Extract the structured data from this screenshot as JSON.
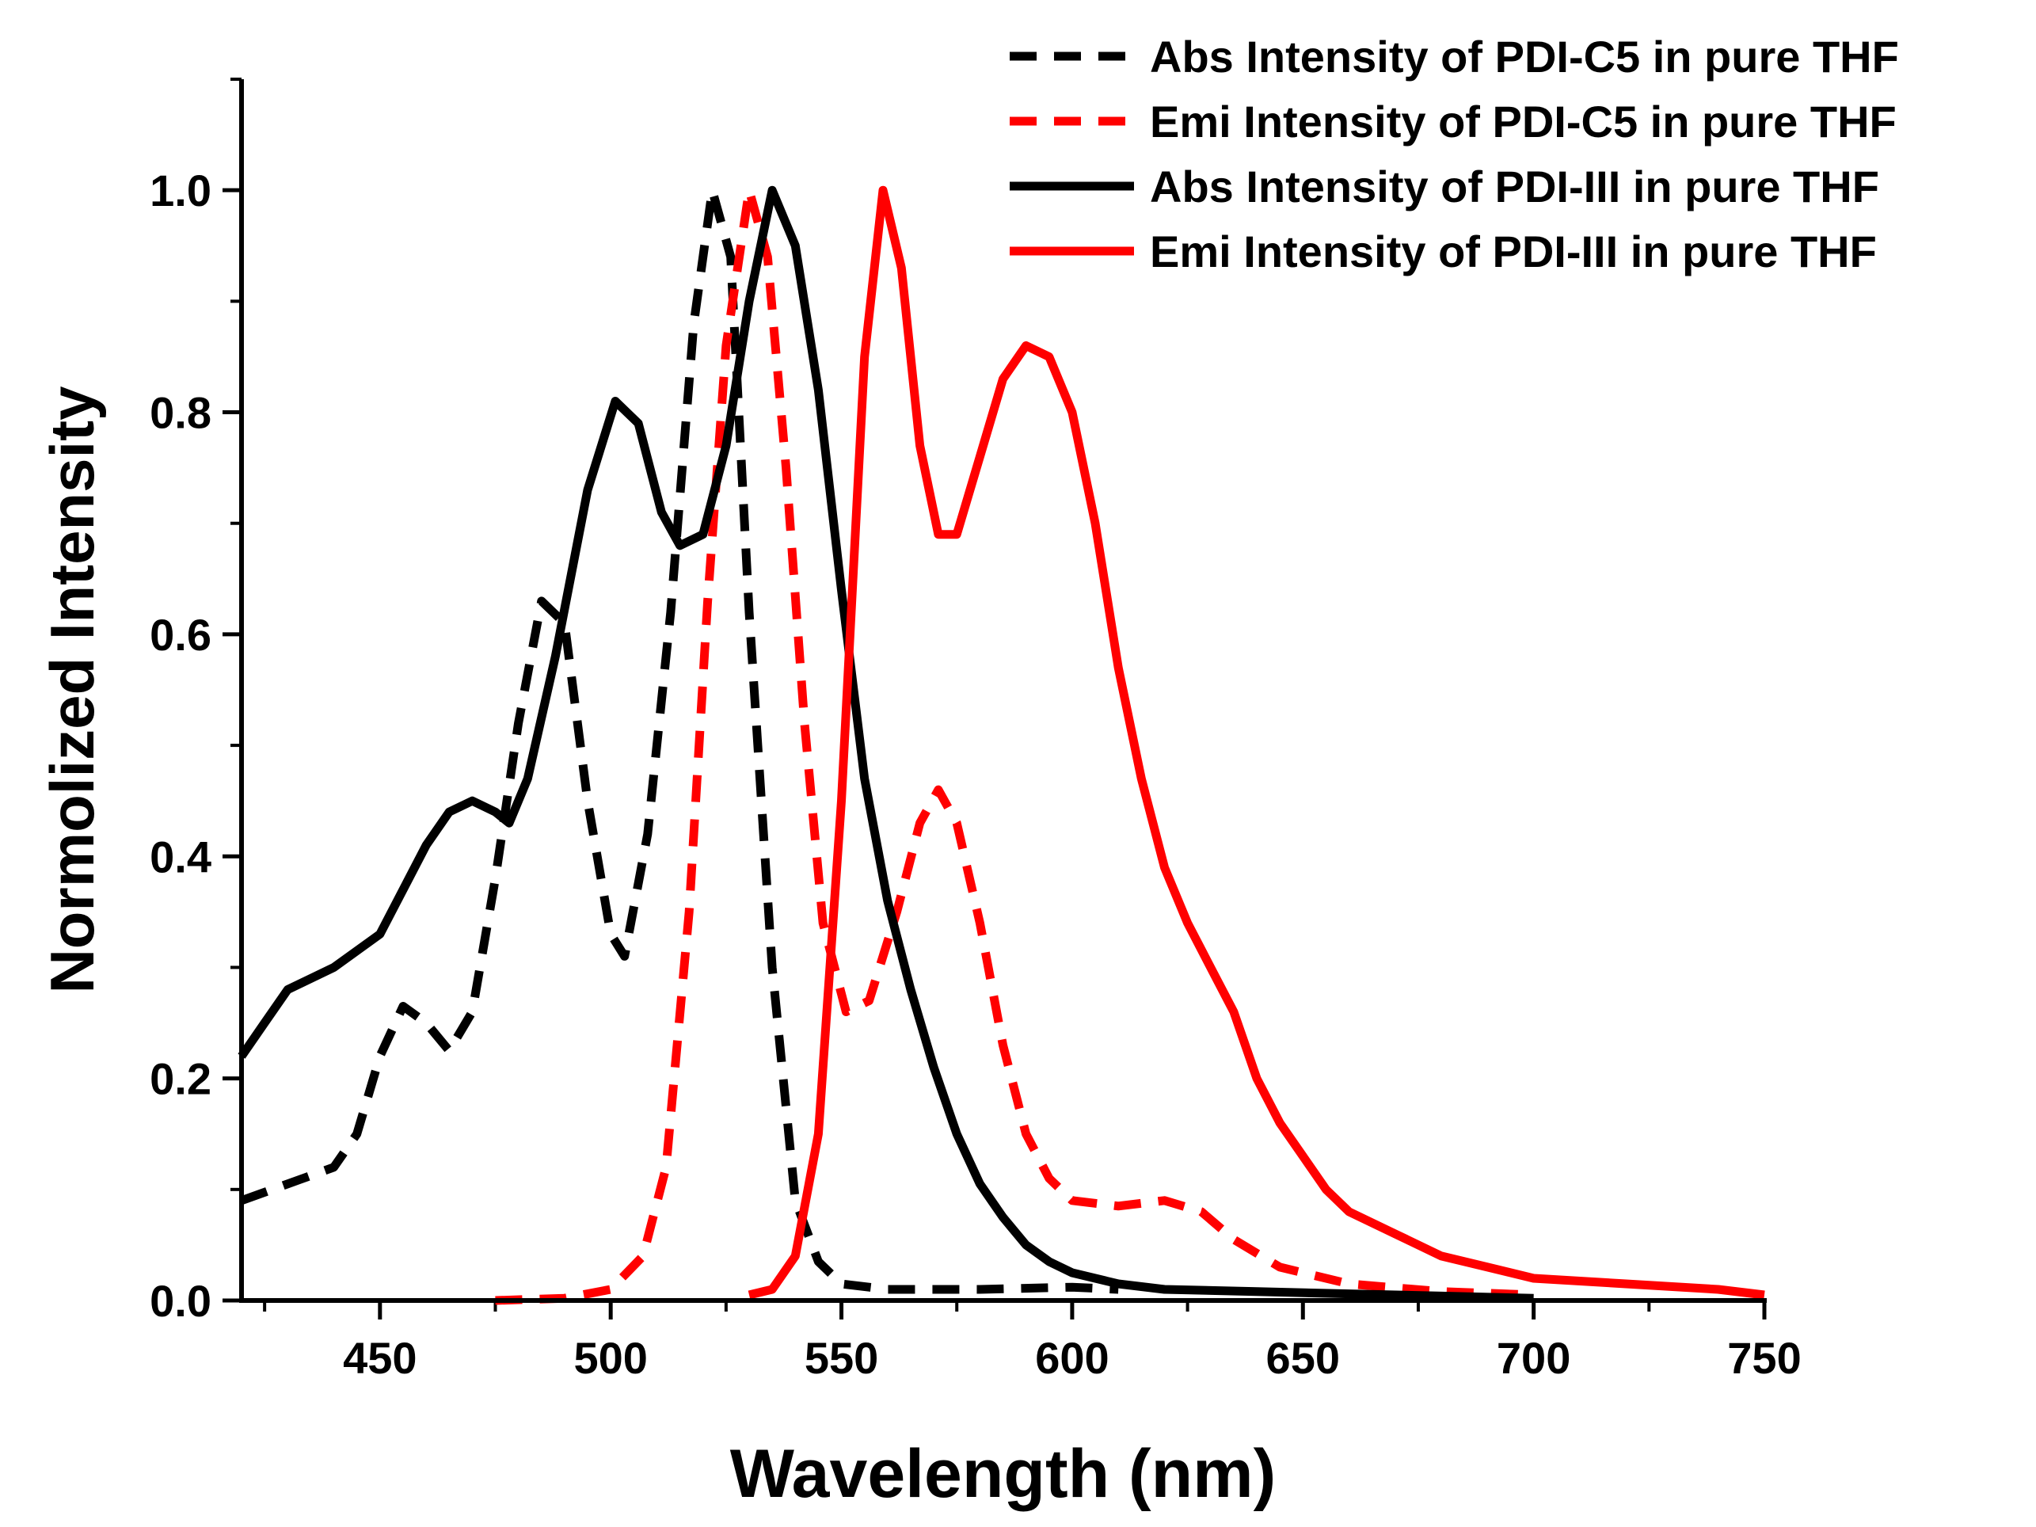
{
  "chart_data": {
    "type": "line",
    "title": "",
    "xlabel": "Wavelength (nm)",
    "ylabel": "Normolized Intensity",
    "xlim": [
      420,
      750
    ],
    "ylim": [
      0,
      1.1
    ],
    "x_ticks": [
      450,
      500,
      550,
      600,
      650,
      700,
      750
    ],
    "x_tick_labels": [
      "450",
      "500",
      "550",
      "600",
      "650",
      "700",
      "750"
    ],
    "y_ticks": [
      0.0,
      0.2,
      0.4,
      0.6,
      0.8,
      1.0
    ],
    "y_tick_labels": [
      "0.0",
      "0.2",
      "0.4",
      "0.6",
      "0.8",
      "1.0"
    ],
    "grid": false,
    "legend_position": "top-right",
    "series": [
      {
        "name": "Abs Intensity of PDI-C5 in pure THF",
        "color": "#000000",
        "style": "dashed",
        "points": [
          [
            420,
            0.09
          ],
          [
            430,
            0.105
          ],
          [
            440,
            0.12
          ],
          [
            445,
            0.15
          ],
          [
            450,
            0.22
          ],
          [
            455,
            0.265
          ],
          [
            460,
            0.25
          ],
          [
            465,
            0.225
          ],
          [
            470,
            0.26
          ],
          [
            475,
            0.38
          ],
          [
            480,
            0.52
          ],
          [
            485,
            0.63
          ],
          [
            490,
            0.61
          ],
          [
            495,
            0.45
          ],
          [
            500,
            0.33
          ],
          [
            503,
            0.31
          ],
          [
            508,
            0.42
          ],
          [
            513,
            0.62
          ],
          [
            518,
            0.88
          ],
          [
            522,
            1.0
          ],
          [
            526,
            0.94
          ],
          [
            530,
            0.62
          ],
          [
            535,
            0.3
          ],
          [
            540,
            0.09
          ],
          [
            545,
            0.035
          ],
          [
            550,
            0.015
          ],
          [
            560,
            0.01
          ],
          [
            580,
            0.01
          ],
          [
            600,
            0.012
          ],
          [
            610,
            0.01
          ]
        ]
      },
      {
        "name": "Emi Intensity of PDI-C5 in pure THF",
        "color": "#ff0000",
        "style": "dashed",
        "points": [
          [
            475,
            0.0
          ],
          [
            490,
            0.002
          ],
          [
            500,
            0.01
          ],
          [
            507,
            0.04
          ],
          [
            512,
            0.12
          ],
          [
            517,
            0.35
          ],
          [
            521,
            0.63
          ],
          [
            525,
            0.86
          ],
          [
            530,
            1.0
          ],
          [
            534,
            0.94
          ],
          [
            538,
            0.75
          ],
          [
            542,
            0.52
          ],
          [
            546,
            0.34
          ],
          [
            551,
            0.26
          ],
          [
            556,
            0.27
          ],
          [
            562,
            0.35
          ],
          [
            567,
            0.43
          ],
          [
            571,
            0.46
          ],
          [
            575,
            0.43
          ],
          [
            580,
            0.34
          ],
          [
            585,
            0.23
          ],
          [
            590,
            0.15
          ],
          [
            595,
            0.11
          ],
          [
            600,
            0.09
          ],
          [
            610,
            0.085
          ],
          [
            620,
            0.09
          ],
          [
            628,
            0.08
          ],
          [
            635,
            0.055
          ],
          [
            645,
            0.03
          ],
          [
            660,
            0.015
          ],
          [
            680,
            0.008
          ],
          [
            700,
            0.005
          ]
        ]
      },
      {
        "name": "Abs Intensity of PDI-III in pure THF",
        "color": "#000000",
        "style": "solid",
        "points": [
          [
            420,
            0.22
          ],
          [
            425,
            0.25
          ],
          [
            430,
            0.28
          ],
          [
            440,
            0.3
          ],
          [
            450,
            0.33
          ],
          [
            455,
            0.37
          ],
          [
            460,
            0.41
          ],
          [
            465,
            0.44
          ],
          [
            470,
            0.45
          ],
          [
            475,
            0.44
          ],
          [
            478,
            0.43
          ],
          [
            482,
            0.47
          ],
          [
            488,
            0.58
          ],
          [
            495,
            0.73
          ],
          [
            501,
            0.81
          ],
          [
            506,
            0.79
          ],
          [
            511,
            0.71
          ],
          [
            515,
            0.68
          ],
          [
            520,
            0.69
          ],
          [
            525,
            0.77
          ],
          [
            530,
            0.9
          ],
          [
            535,
            1.0
          ],
          [
            540,
            0.95
          ],
          [
            545,
            0.82
          ],
          [
            550,
            0.64
          ],
          [
            555,
            0.47
          ],
          [
            560,
            0.36
          ],
          [
            565,
            0.28
          ],
          [
            570,
            0.21
          ],
          [
            575,
            0.15
          ],
          [
            580,
            0.105
          ],
          [
            585,
            0.075
          ],
          [
            590,
            0.05
          ],
          [
            595,
            0.035
          ],
          [
            600,
            0.025
          ],
          [
            610,
            0.015
          ],
          [
            620,
            0.01
          ],
          [
            640,
            0.008
          ],
          [
            660,
            0.006
          ],
          [
            680,
            0.004
          ],
          [
            700,
            0.002
          ]
        ]
      },
      {
        "name": "Emi Intensity of PDI-III in pure THF",
        "color": "#ff0000",
        "style": "solid",
        "points": [
          [
            530,
            0.005
          ],
          [
            535,
            0.01
          ],
          [
            540,
            0.04
          ],
          [
            545,
            0.15
          ],
          [
            550,
            0.45
          ],
          [
            555,
            0.85
          ],
          [
            559,
            1.0
          ],
          [
            563,
            0.93
          ],
          [
            567,
            0.77
          ],
          [
            571,
            0.69
          ],
          [
            575,
            0.69
          ],
          [
            580,
            0.76
          ],
          [
            585,
            0.83
          ],
          [
            590,
            0.86
          ],
          [
            595,
            0.85
          ],
          [
            600,
            0.8
          ],
          [
            605,
            0.7
          ],
          [
            610,
            0.57
          ],
          [
            615,
            0.47
          ],
          [
            620,
            0.39
          ],
          [
            625,
            0.34
          ],
          [
            630,
            0.3
          ],
          [
            635,
            0.26
          ],
          [
            640,
            0.2
          ],
          [
            645,
            0.16
          ],
          [
            650,
            0.13
          ],
          [
            655,
            0.1
          ],
          [
            660,
            0.08
          ],
          [
            670,
            0.06
          ],
          [
            680,
            0.04
          ],
          [
            690,
            0.03
          ],
          [
            700,
            0.02
          ],
          [
            720,
            0.015
          ],
          [
            740,
            0.01
          ],
          [
            750,
            0.005
          ]
        ]
      }
    ]
  }
}
